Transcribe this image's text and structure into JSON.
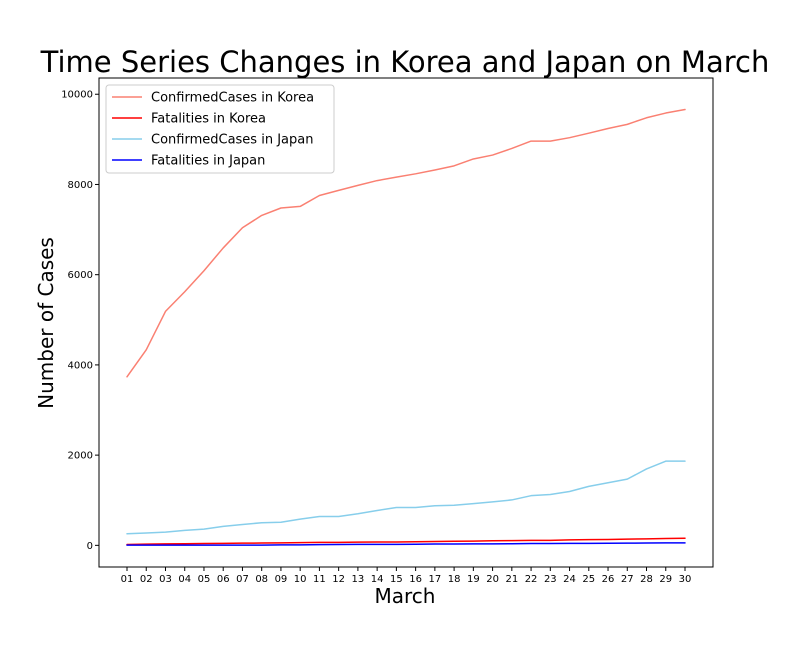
{
  "chart_data": {
    "type": "line",
    "title": "Time Series Changes in Korea and Japan on March",
    "xlabel": "March",
    "ylabel": "Number of Cases",
    "categories": [
      "01",
      "02",
      "03",
      "04",
      "05",
      "06",
      "07",
      "08",
      "09",
      "10",
      "11",
      "12",
      "13",
      "14",
      "15",
      "16",
      "17",
      "18",
      "19",
      "20",
      "21",
      "22",
      "23",
      "24",
      "25",
      "26",
      "27",
      "28",
      "29",
      "30"
    ],
    "ylim": [
      -480,
      10360
    ],
    "yticks": [
      0,
      2000,
      4000,
      6000,
      8000,
      10000
    ],
    "grid": false,
    "legend_position": "top-left",
    "series": [
      {
        "name": "ConfirmedCases in Korea",
        "color": "#fa8072",
        "values": [
          3736,
          4335,
          5186,
          5621,
          6088,
          6593,
          7041,
          7314,
          7478,
          7513,
          7755,
          7869,
          7979,
          8086,
          8162,
          8236,
          8320,
          8413,
          8565,
          8652,
          8799,
          8961,
          8961,
          9037,
          9137,
          9241,
          9332,
          9478,
          9583,
          9661
        ]
      },
      {
        "name": "Fatalities in Korea",
        "color": "#ff0000",
        "values": [
          20,
          28,
          32,
          35,
          42,
          44,
          50,
          51,
          54,
          60,
          66,
          67,
          72,
          75,
          75,
          81,
          84,
          91,
          94,
          102,
          104,
          111,
          111,
          120,
          126,
          131,
          139,
          144,
          152,
          158
        ]
      },
      {
        "name": "ConfirmedCases in Japan",
        "color": "#87ceeb",
        "values": [
          256,
          274,
          293,
          331,
          360,
          420,
          461,
          502,
          511,
          581,
          639,
          639,
          701,
          773,
          839,
          839,
          878,
          889,
          924,
          963,
          1007,
          1101,
          1128,
          1193,
          1307,
          1387,
          1468,
          1693,
          1866,
          1866
        ]
      },
      {
        "name": "Fatalities in Japan",
        "color": "#0000ff",
        "values": [
          6,
          6,
          6,
          6,
          6,
          6,
          6,
          6,
          10,
          10,
          15,
          19,
          22,
          22,
          22,
          24,
          29,
          29,
          32,
          33,
          35,
          41,
          42,
          43,
          45,
          46,
          49,
          52,
          54,
          54
        ]
      }
    ]
  }
}
